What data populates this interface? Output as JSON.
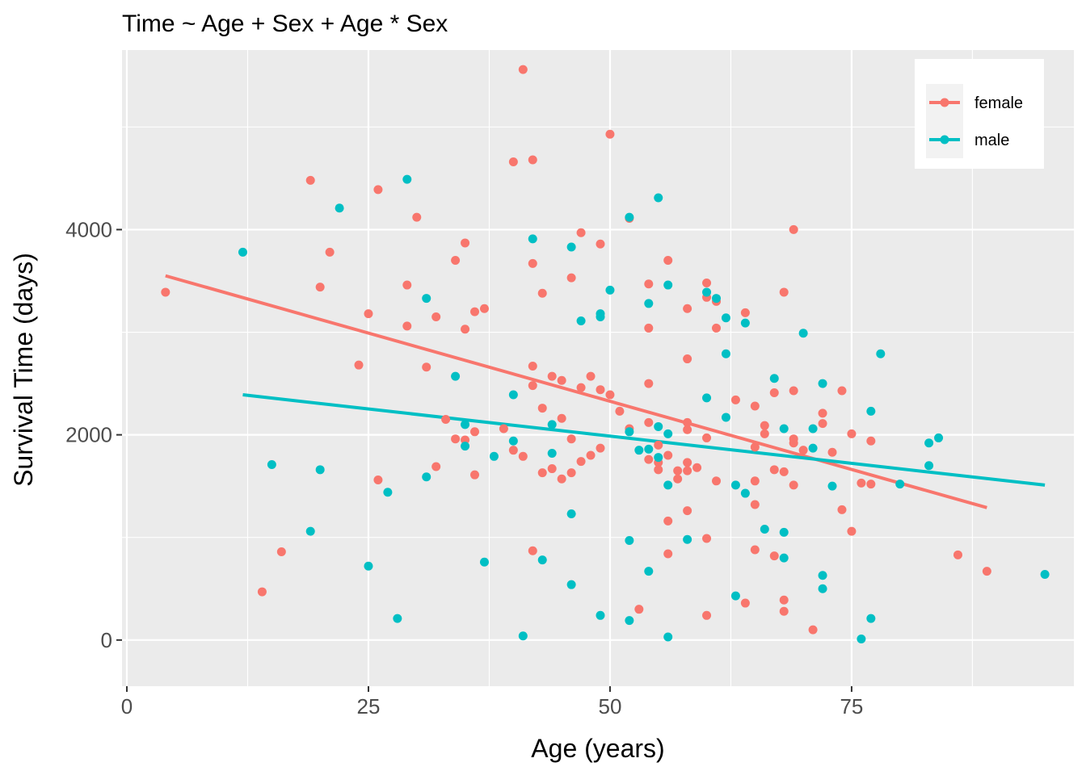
{
  "chart_data": {
    "type": "scatter",
    "title": "Time ~ Age + Sex + Age * Sex",
    "xlabel": "Age (years)",
    "ylabel": "Survival Time (days)",
    "xlim": [
      -0.5,
      98
    ],
    "ylim": [
      -450,
      5750
    ],
    "x_ticks": [
      0,
      25,
      50,
      75
    ],
    "x_tick_labels": [
      "0",
      "25",
      "50",
      "75"
    ],
    "y_ticks": [
      0,
      2000,
      4000
    ],
    "y_tick_labels": [
      "0",
      "2000",
      "4000"
    ],
    "grid": true,
    "legend_position": "top-right",
    "series": [
      {
        "name": "female",
        "color": "#F8766D",
        "fit": [
          [
            4,
            3550
          ],
          [
            89,
            1290
          ]
        ],
        "points": [
          [
            4,
            3390
          ],
          [
            14,
            470
          ],
          [
            16,
            860
          ],
          [
            19,
            4480
          ],
          [
            20,
            3440
          ],
          [
            21,
            3780
          ],
          [
            24,
            2680
          ],
          [
            25,
            3180
          ],
          [
            26,
            1560
          ],
          [
            26,
            4390
          ],
          [
            29,
            3460
          ],
          [
            29,
            3060
          ],
          [
            30,
            4120
          ],
          [
            31,
            2660
          ],
          [
            32,
            3150
          ],
          [
            32,
            1690
          ],
          [
            33,
            2150
          ],
          [
            34,
            3700
          ],
          [
            34,
            1960
          ],
          [
            35,
            3870
          ],
          [
            35,
            3030
          ],
          [
            35,
            1950
          ],
          [
            36,
            3200
          ],
          [
            36,
            2030
          ],
          [
            36,
            1610
          ],
          [
            37,
            3230
          ],
          [
            39,
            2060
          ],
          [
            40,
            4660
          ],
          [
            40,
            1850
          ],
          [
            41,
            5560
          ],
          [
            41,
            1790
          ],
          [
            42,
            4680
          ],
          [
            42,
            3670
          ],
          [
            42,
            2670
          ],
          [
            42,
            2480
          ],
          [
            42,
            870
          ],
          [
            43,
            3380
          ],
          [
            43,
            2260
          ],
          [
            43,
            1630
          ],
          [
            44,
            2570
          ],
          [
            44,
            1670
          ],
          [
            45,
            2530
          ],
          [
            45,
            2160
          ],
          [
            45,
            1570
          ],
          [
            46,
            3530
          ],
          [
            46,
            1960
          ],
          [
            46,
            1630
          ],
          [
            47,
            3970
          ],
          [
            47,
            2460
          ],
          [
            47,
            1740
          ],
          [
            48,
            2570
          ],
          [
            48,
            1800
          ],
          [
            49,
            3860
          ],
          [
            49,
            2440
          ],
          [
            49,
            1870
          ],
          [
            50,
            4930
          ],
          [
            50,
            2390
          ],
          [
            51,
            2230
          ],
          [
            52,
            4110
          ],
          [
            52,
            2060
          ],
          [
            53,
            300
          ],
          [
            54,
            3470
          ],
          [
            54,
            3040
          ],
          [
            54,
            2500
          ],
          [
            54,
            2120
          ],
          [
            54,
            1760
          ],
          [
            55,
            1900
          ],
          [
            55,
            1730
          ],
          [
            55,
            1660
          ],
          [
            56,
            3700
          ],
          [
            56,
            1800
          ],
          [
            56,
            1160
          ],
          [
            56,
            840
          ],
          [
            57,
            1650
          ],
          [
            57,
            1570
          ],
          [
            58,
            3230
          ],
          [
            58,
            2740
          ],
          [
            58,
            2120
          ],
          [
            58,
            2050
          ],
          [
            58,
            1730
          ],
          [
            58,
            1650
          ],
          [
            58,
            1260
          ],
          [
            59,
            1680
          ],
          [
            60,
            3480
          ],
          [
            60,
            3340
          ],
          [
            60,
            1970
          ],
          [
            60,
            990
          ],
          [
            60,
            240
          ],
          [
            61,
            3300
          ],
          [
            61,
            3040
          ],
          [
            61,
            1550
          ],
          [
            63,
            2340
          ],
          [
            64,
            3190
          ],
          [
            64,
            360
          ],
          [
            65,
            2280
          ],
          [
            65,
            1880
          ],
          [
            65,
            1550
          ],
          [
            65,
            1320
          ],
          [
            65,
            880
          ],
          [
            66,
            2090
          ],
          [
            66,
            2010
          ],
          [
            67,
            2410
          ],
          [
            67,
            1660
          ],
          [
            67,
            820
          ],
          [
            68,
            3390
          ],
          [
            68,
            1640
          ],
          [
            68,
            390
          ],
          [
            68,
            280
          ],
          [
            69,
            4000
          ],
          [
            69,
            2430
          ],
          [
            69,
            1960
          ],
          [
            69,
            1920
          ],
          [
            69,
            1510
          ],
          [
            70,
            1850
          ],
          [
            71,
            100
          ],
          [
            72,
            2210
          ],
          [
            72,
            2110
          ],
          [
            73,
            1830
          ],
          [
            74,
            2430
          ],
          [
            74,
            1270
          ],
          [
            75,
            2010
          ],
          [
            75,
            1060
          ],
          [
            76,
            1530
          ],
          [
            77,
            1940
          ],
          [
            77,
            1520
          ],
          [
            86,
            830
          ],
          [
            89,
            670
          ]
        ]
      },
      {
        "name": "male",
        "color": "#00BFC4",
        "fit": [
          [
            12,
            2390
          ],
          [
            95,
            1510
          ]
        ],
        "points": [
          [
            12,
            3780
          ],
          [
            15,
            1710
          ],
          [
            19,
            1060
          ],
          [
            20,
            1660
          ],
          [
            22,
            4210
          ],
          [
            25,
            720
          ],
          [
            27,
            1440
          ],
          [
            28,
            210
          ],
          [
            29,
            4490
          ],
          [
            31,
            3330
          ],
          [
            31,
            1590
          ],
          [
            34,
            2570
          ],
          [
            35,
            2100
          ],
          [
            35,
            1890
          ],
          [
            37,
            760
          ],
          [
            38,
            1790
          ],
          [
            40,
            2390
          ],
          [
            40,
            1940
          ],
          [
            41,
            40
          ],
          [
            42,
            3910
          ],
          [
            43,
            780
          ],
          [
            44,
            2100
          ],
          [
            44,
            1820
          ],
          [
            46,
            3830
          ],
          [
            46,
            1230
          ],
          [
            46,
            540
          ],
          [
            47,
            3110
          ],
          [
            49,
            3180
          ],
          [
            49,
            3150
          ],
          [
            49,
            240
          ],
          [
            50,
            3410
          ],
          [
            52,
            4120
          ],
          [
            52,
            2030
          ],
          [
            52,
            970
          ],
          [
            52,
            190
          ],
          [
            53,
            1850
          ],
          [
            54,
            3280
          ],
          [
            54,
            1860
          ],
          [
            54,
            670
          ],
          [
            55,
            4310
          ],
          [
            55,
            2080
          ],
          [
            55,
            1780
          ],
          [
            56,
            3460
          ],
          [
            56,
            2010
          ],
          [
            56,
            1510
          ],
          [
            56,
            30
          ],
          [
            58,
            980
          ],
          [
            60,
            3390
          ],
          [
            60,
            2360
          ],
          [
            61,
            3330
          ],
          [
            62,
            3140
          ],
          [
            62,
            2790
          ],
          [
            62,
            2170
          ],
          [
            63,
            1510
          ],
          [
            63,
            430
          ],
          [
            64,
            3090
          ],
          [
            64,
            1430
          ],
          [
            66,
            1080
          ],
          [
            67,
            2550
          ],
          [
            68,
            2060
          ],
          [
            68,
            1050
          ],
          [
            68,
            800
          ],
          [
            70,
            2990
          ],
          [
            71,
            2060
          ],
          [
            71,
            1870
          ],
          [
            72,
            2500
          ],
          [
            72,
            630
          ],
          [
            72,
            500
          ],
          [
            73,
            1500
          ],
          [
            76,
            10
          ],
          [
            77,
            2230
          ],
          [
            77,
            210
          ],
          [
            78,
            2790
          ],
          [
            80,
            1520
          ],
          [
            83,
            1920
          ],
          [
            83,
            1700
          ],
          [
            84,
            1970
          ],
          [
            95,
            640
          ]
        ]
      }
    ]
  }
}
